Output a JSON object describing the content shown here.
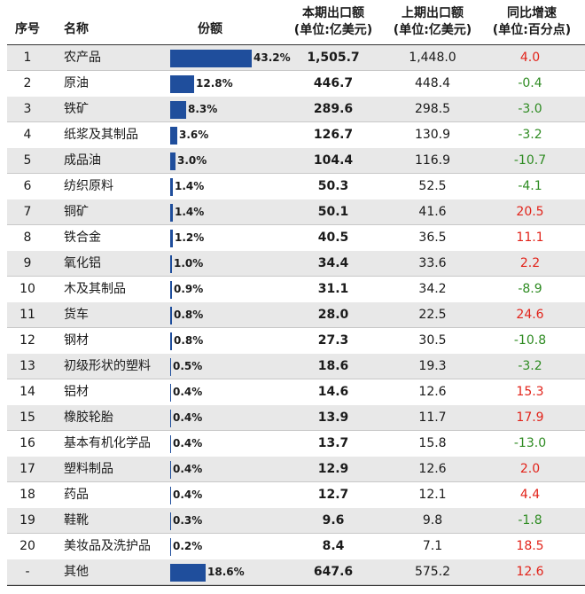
{
  "colors": {
    "bar": "#1f4e9c",
    "positive": "#e2231a",
    "negative": "#2e8b22",
    "shade": "#e8e8e8"
  },
  "header": {
    "index": "序号",
    "name": "名称",
    "share": "份额",
    "current_line1": "本期出口额",
    "current_line2": "(单位:亿美元)",
    "previous_line1": "上期出口额",
    "previous_line2": "(单位:亿美元)",
    "growth_line1": "同比增速",
    "growth_line2": "(单位:百分点)"
  },
  "chart_data": {
    "type": "table",
    "columns": [
      "序号",
      "名称",
      "份额",
      "本期出口额(单位:亿美元)",
      "上期出口额(单位:亿美元)",
      "同比增速(单位:百分点)"
    ],
    "max_share": 43.2,
    "rows": [
      {
        "idx": "1",
        "name": "农产品",
        "share": 43.2,
        "share_label": "43.2%",
        "current": "1,505.7",
        "previous": "1,448.0",
        "growth": "4.0"
      },
      {
        "idx": "2",
        "name": "原油",
        "share": 12.8,
        "share_label": "12.8%",
        "current": "446.7",
        "previous": "448.4",
        "growth": "-0.4"
      },
      {
        "idx": "3",
        "name": "铁矿",
        "share": 8.3,
        "share_label": "8.3%",
        "current": "289.6",
        "previous": "298.5",
        "growth": "-3.0"
      },
      {
        "idx": "4",
        "name": "纸浆及其制品",
        "share": 3.6,
        "share_label": "3.6%",
        "current": "126.7",
        "previous": "130.9",
        "growth": "-3.2"
      },
      {
        "idx": "5",
        "name": "成品油",
        "share": 3.0,
        "share_label": "3.0%",
        "current": "104.4",
        "previous": "116.9",
        "growth": "-10.7"
      },
      {
        "idx": "6",
        "name": "纺织原料",
        "share": 1.4,
        "share_label": "1.4%",
        "current": "50.3",
        "previous": "52.5",
        "growth": "-4.1"
      },
      {
        "idx": "7",
        "name": "铜矿",
        "share": 1.4,
        "share_label": "1.4%",
        "current": "50.1",
        "previous": "41.6",
        "growth": "20.5"
      },
      {
        "idx": "8",
        "name": "铁合金",
        "share": 1.2,
        "share_label": "1.2%",
        "current": "40.5",
        "previous": "36.5",
        "growth": "11.1"
      },
      {
        "idx": "9",
        "name": "氧化铝",
        "share": 1.0,
        "share_label": "1.0%",
        "current": "34.4",
        "previous": "33.6",
        "growth": "2.2"
      },
      {
        "idx": "10",
        "name": "木及其制品",
        "share": 0.9,
        "share_label": "0.9%",
        "current": "31.1",
        "previous": "34.2",
        "growth": "-8.9"
      },
      {
        "idx": "11",
        "name": "货车",
        "share": 0.8,
        "share_label": "0.8%",
        "current": "28.0",
        "previous": "22.5",
        "growth": "24.6"
      },
      {
        "idx": "12",
        "name": "钢材",
        "share": 0.8,
        "share_label": "0.8%",
        "current": "27.3",
        "previous": "30.5",
        "growth": "-10.8"
      },
      {
        "idx": "13",
        "name": "初级形状的塑料",
        "share": 0.5,
        "share_label": "0.5%",
        "current": "18.6",
        "previous": "19.3",
        "growth": "-3.2"
      },
      {
        "idx": "14",
        "name": "铝材",
        "share": 0.4,
        "share_label": "0.4%",
        "current": "14.6",
        "previous": "12.6",
        "growth": "15.3"
      },
      {
        "idx": "15",
        "name": "橡胶轮胎",
        "share": 0.4,
        "share_label": "0.4%",
        "current": "13.9",
        "previous": "11.7",
        "growth": "17.9"
      },
      {
        "idx": "16",
        "name": "基本有机化学品",
        "share": 0.4,
        "share_label": "0.4%",
        "current": "13.7",
        "previous": "15.8",
        "growth": "-13.0"
      },
      {
        "idx": "17",
        "name": "塑料制品",
        "share": 0.4,
        "share_label": "0.4%",
        "current": "12.9",
        "previous": "12.6",
        "growth": "2.0"
      },
      {
        "idx": "18",
        "name": "药品",
        "share": 0.4,
        "share_label": "0.4%",
        "current": "12.7",
        "previous": "12.1",
        "growth": "4.4"
      },
      {
        "idx": "19",
        "name": "鞋靴",
        "share": 0.3,
        "share_label": "0.3%",
        "current": "9.6",
        "previous": "9.8",
        "growth": "-1.8"
      },
      {
        "idx": "20",
        "name": "美妆品及洗护品",
        "share": 0.2,
        "share_label": "0.2%",
        "current": "8.4",
        "previous": "7.1",
        "growth": "18.5"
      },
      {
        "idx": "-",
        "name": "其他",
        "share": 18.6,
        "share_label": "18.6%",
        "current": "647.6",
        "previous": "575.2",
        "growth": "12.6"
      }
    ]
  }
}
